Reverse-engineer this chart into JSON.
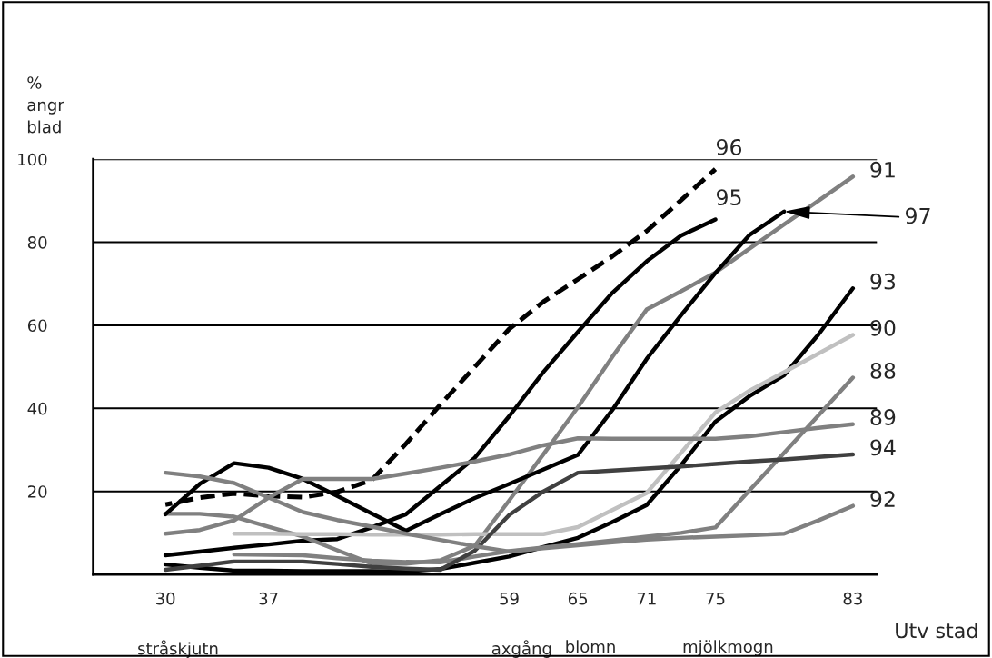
{
  "chart_data": {
    "type": "line",
    "ylabel": "%\nangr\nblad",
    "xlabel": "Utv stad",
    "annotations": [
      "stråskjutn",
      "axgång",
      "blomn",
      "mjölkmogn"
    ],
    "categories": [
      "30",
      null,
      null,
      "37",
      null,
      null,
      null,
      null,
      null,
      null,
      "59",
      null,
      "65",
      null,
      "71",
      null,
      "75",
      null,
      null,
      null,
      "83"
    ],
    "ylim": [
      0,
      100
    ],
    "yticks": [
      20,
      40,
      60,
      80,
      100
    ],
    "grid": "y",
    "marker": "none",
    "legend": false,
    "series": [
      {
        "name": "96",
        "color": "#000000",
        "line_style": "dashed",
        "values": [
          16.8,
          18.5,
          19.5,
          18.9,
          18.6,
          19.9,
          22.7,
          31.5,
          40.9,
          50.0,
          59.1,
          65.7,
          71.1,
          76.6,
          82.7,
          90.1,
          97.6,
          null,
          null,
          null,
          null
        ]
      },
      {
        "name": "95",
        "color": "#000000",
        "values": [
          4.6,
          5.5,
          6.4,
          7.2,
          8.1,
          8.5,
          11.3,
          14.5,
          21.3,
          28.1,
          38.1,
          48.8,
          58.4,
          67.8,
          75.4,
          81.6,
          85.5,
          null,
          null,
          null,
          null
        ]
      },
      {
        "name": "91",
        "color": "#808080",
        "values": [
          14.6,
          14.6,
          13.9,
          11.5,
          9.1,
          5.8,
          2.6,
          2.6,
          3.4,
          6.9,
          17.8,
          29.0,
          40.3,
          52.4,
          63.8,
          68.2,
          72.7,
          78.5,
          84.3,
          90.0,
          95.8
        ]
      },
      {
        "name": "97",
        "color": "#000000",
        "values": [
          14.5,
          21.8,
          26.8,
          25.7,
          23.0,
          18.9,
          14.7,
          10.5,
          14.5,
          18.4,
          21.8,
          25.3,
          28.8,
          39.6,
          51.9,
          62.4,
          72.6,
          81.8,
          87.4,
          null,
          null
        ]
      },
      {
        "name": "93",
        "color": "#000000",
        "values": [
          2.4,
          1.6,
          0.9,
          0.9,
          0.8,
          0.8,
          0.8,
          0.7,
          1.3,
          2.8,
          4.3,
          6.6,
          8.8,
          12.6,
          16.7,
          26.3,
          36.8,
          43.0,
          48.0,
          57.8,
          68.9
        ]
      },
      {
        "name": "90",
        "color": "#c0c0c0",
        "values": [
          null,
          null,
          9.8,
          9.8,
          9.7,
          9.7,
          9.6,
          9.6,
          9.6,
          9.7,
          9.7,
          9.7,
          11.4,
          15.5,
          19.6,
          29.3,
          39.0,
          44.3,
          48.7,
          53.2,
          57.7
        ]
      },
      {
        "name": "88",
        "color": "#808080",
        "values": [
          null,
          null,
          4.8,
          4.7,
          4.6,
          3.9,
          3.3,
          3.0,
          2.9,
          4.3,
          5.6,
          6.5,
          7.3,
          8.2,
          9.1,
          10.0,
          11.3,
          20.3,
          29.3,
          38.3,
          47.4
        ]
      },
      {
        "name": "89",
        "color": "#808080",
        "values": [
          9.8,
          10.7,
          13.0,
          18.5,
          23.0,
          23.0,
          23.0,
          24.3,
          25.7,
          27.2,
          28.9,
          31.1,
          32.8,
          32.7,
          32.7,
          32.7,
          32.7,
          33.3,
          34.3,
          35.3,
          36.2
        ]
      },
      {
        "name": "94",
        "color": "#404040",
        "values": [
          1.1,
          2.1,
          3.1,
          3.1,
          3.1,
          2.5,
          1.8,
          1.4,
          1.1,
          5.7,
          14.3,
          20.0,
          24.5,
          25.0,
          25.5,
          26.0,
          26.6,
          27.2,
          27.7,
          28.3,
          28.9
        ]
      },
      {
        "name": "92",
        "color": "#808080",
        "values": [
          24.5,
          23.6,
          22.0,
          18.5,
          15.0,
          13.1,
          11.5,
          9.8,
          8.3,
          6.8,
          5.5,
          6.3,
          7.0,
          7.7,
          8.4,
          8.8,
          9.1,
          9.4,
          9.8,
          13.0,
          16.5
        ]
      }
    ]
  }
}
